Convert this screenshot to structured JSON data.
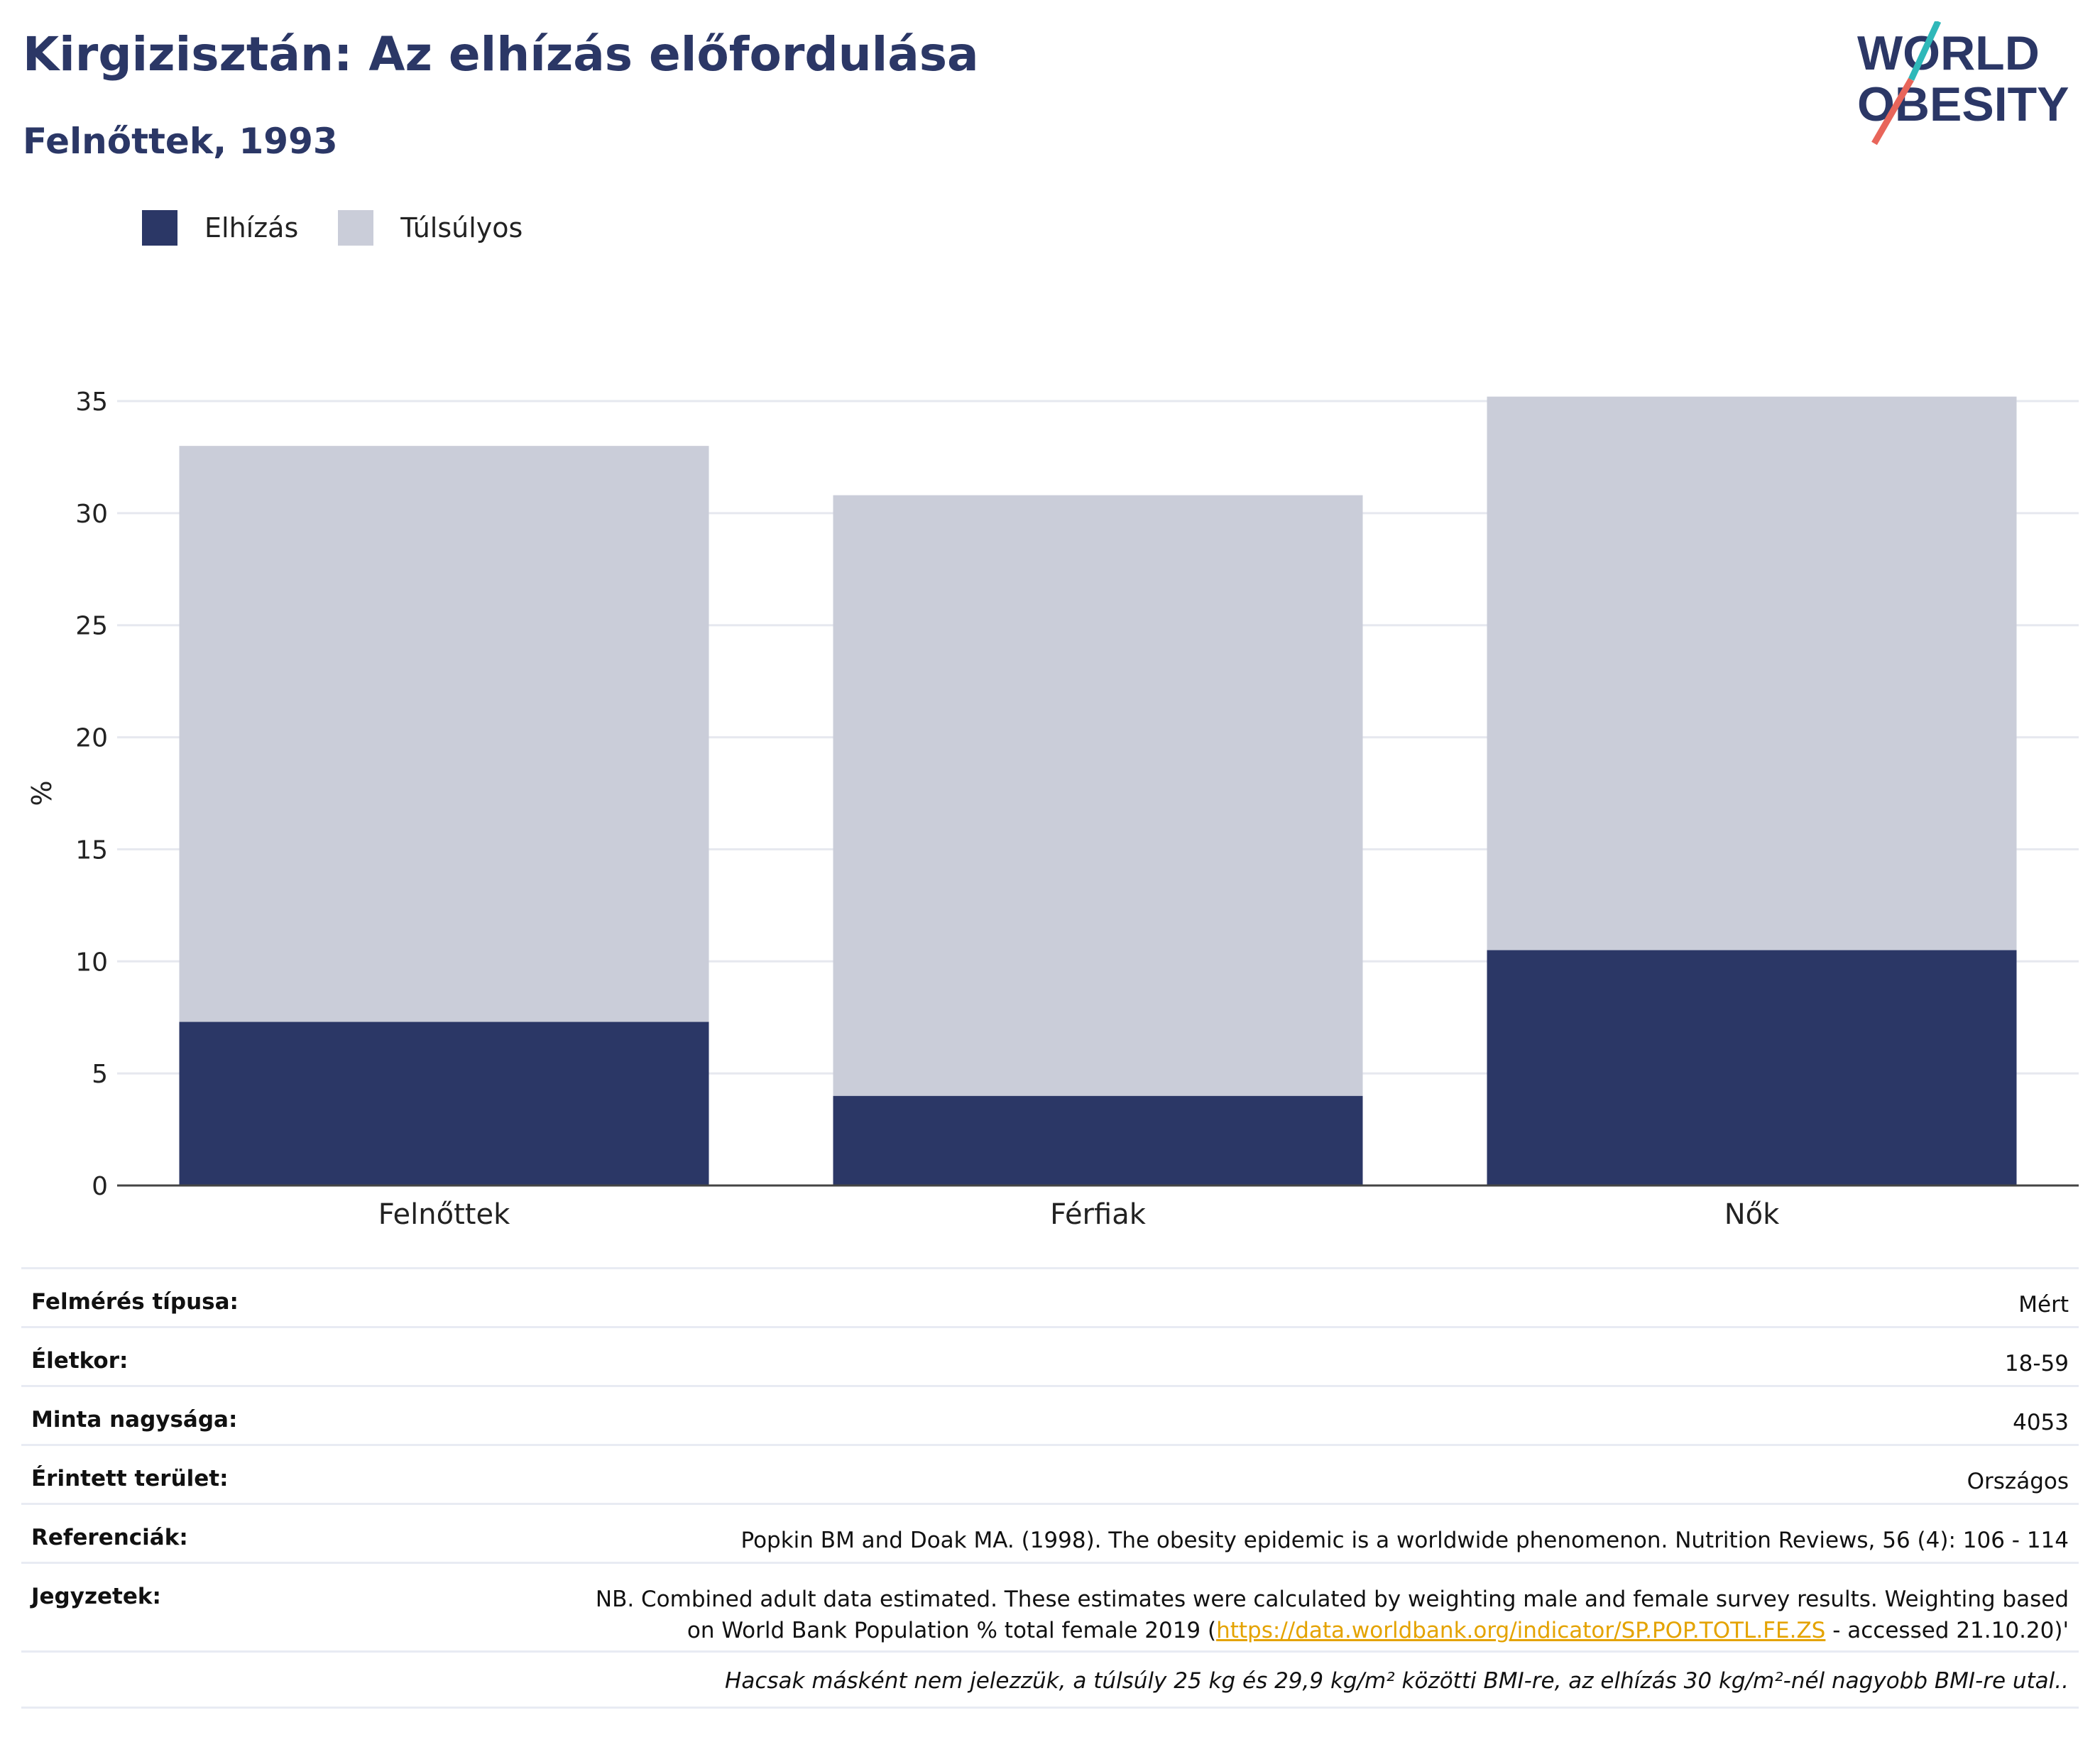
{
  "header": {
    "title": "Kirgizisztán: Az elhízás előfordulása",
    "subtitle": "Felnőttek, 1993"
  },
  "logo": {
    "line1": "WORLD",
    "line2": "OBESITY",
    "colors": {
      "navy": "#2b3766",
      "teal": "#2fb8b9",
      "coral": "#e8655a"
    }
  },
  "legend": [
    {
      "label": "Elhízás",
      "color": "#2b3766"
    },
    {
      "label": "Túlsúlyos",
      "color": "#cacdd9"
    }
  ],
  "chart_data": {
    "type": "bar",
    "stacked": true,
    "categories": [
      "Felnőttek",
      "Férfiak",
      "Nők"
    ],
    "series": [
      {
        "name": "Elhízás",
        "values": [
          7.3,
          4.0,
          10.5
        ],
        "color": "#2b3766"
      },
      {
        "name": "Túlsúlyos",
        "values": [
          25.7,
          26.8,
          24.7
        ],
        "color": "#cacdd9"
      }
    ],
    "ylabel": "%",
    "ylim": [
      0,
      35
    ],
    "yticks": [
      0,
      5,
      10,
      15,
      20,
      25,
      30,
      35
    ],
    "grid": true
  },
  "meta": {
    "rows": [
      {
        "label": "Felmérés típusa:",
        "value": "Mért"
      },
      {
        "label": "Életkor:",
        "value": "18-59"
      },
      {
        "label": "Minta nagysága:",
        "value": "4053"
      },
      {
        "label": "Érintett terület:",
        "value": "Országos"
      },
      {
        "label": "Referenciák:",
        "value": "Popkin BM and Doak MA. (1998). The obesity epidemic is a worldwide phenomenon. Nutrition Reviews, 56 (4): 106 - 114"
      }
    ],
    "notes": {
      "label": "Jegyzetek:",
      "line1": "NB. Combined adult data estimated. These estimates were calculated by weighting male and female survey results. Weighting based",
      "line2_prefix": "on World Bank Population % total female 2019 (",
      "link": "https://data.worldbank.org/indicator/SP.POP.TOTL.FE.ZS",
      "line2_suffix": " - accessed 21.10.20)'"
    },
    "footnote": "Hacsak másként nem jelezzük, a túlsúly 25 kg és 29,9 kg/m² közötti BMI-re, az elhízás 30 kg/m²-nél nagyobb BMI-re utal.."
  }
}
